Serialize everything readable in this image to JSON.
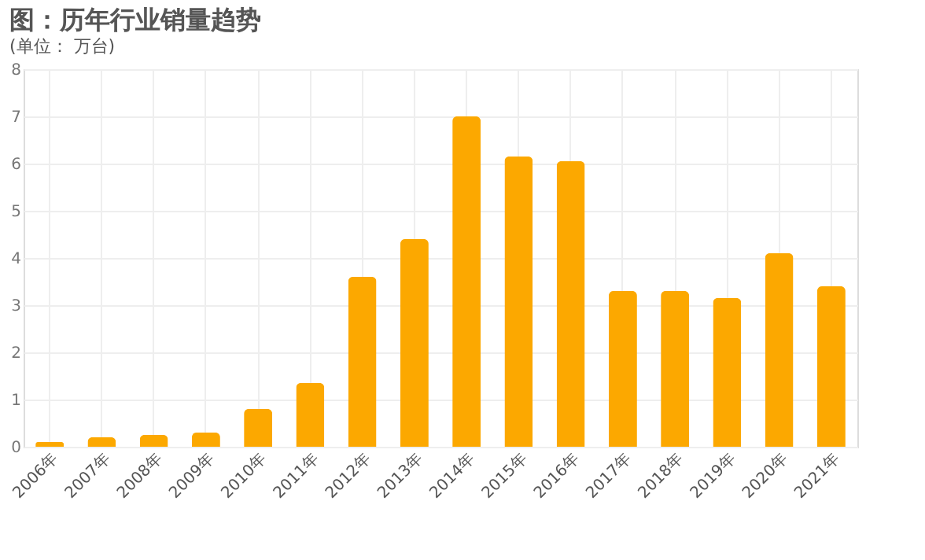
{
  "chart_data": {
    "type": "bar",
    "title": "图：历年行业销量趋势",
    "subtitle": "(单位： 万台)",
    "categories": [
      "2006年",
      "2007年",
      "2008年",
      "2009年",
      "2010年",
      "2011年",
      "2012年",
      "2013年",
      "2014年",
      "2015年",
      "2016年",
      "2017年",
      "2018年",
      "2019年",
      "2020年",
      "2021年"
    ],
    "values": [
      0.1,
      0.2,
      0.25,
      0.3,
      0.8,
      1.35,
      3.6,
      4.4,
      7.0,
      6.15,
      6.05,
      3.3,
      3.3,
      3.15,
      4.1,
      3.4
    ],
    "color": "#fca800",
    "ylim": [
      0,
      8
    ],
    "yticks": [
      0,
      1,
      2,
      3,
      4,
      5,
      6,
      7,
      8
    ],
    "grid": true
  }
}
